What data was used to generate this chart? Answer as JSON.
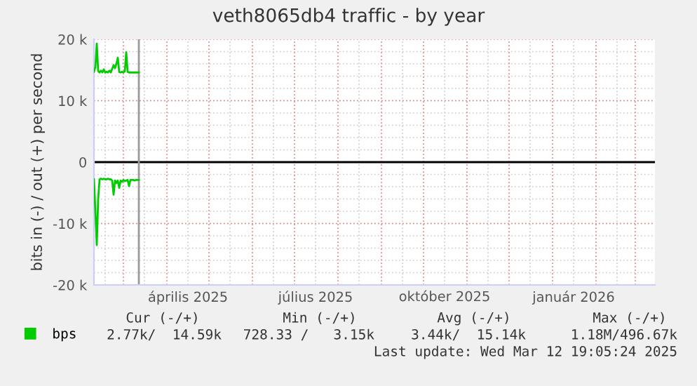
{
  "chart_data": {
    "type": "line",
    "title": "veth8065db4 traffic - by year",
    "ylabel": "bits in (-) / out (+) per second",
    "x": [
      "2025-02-08",
      "2025-02-09",
      "2025-02-10",
      "2025-02-11",
      "2025-02-12",
      "2025-02-13",
      "2025-02-14",
      "2025-02-15",
      "2025-02-16",
      "2025-02-17",
      "2025-02-18",
      "2025-02-19",
      "2025-02-20",
      "2025-02-21",
      "2025-02-22",
      "2025-02-23",
      "2025-02-24",
      "2025-02-25",
      "2025-02-26",
      "2025-02-27",
      "2025-02-28",
      "2025-03-01",
      "2025-03-02",
      "2025-03-03",
      "2025-03-04",
      "2025-03-05",
      "2025-03-06",
      "2025-03-07",
      "2025-03-08",
      "2025-03-09",
      "2025-03-10",
      "2025-03-11",
      "2025-03-12"
    ],
    "series": [
      {
        "name": "bps",
        "color": "#00cc00",
        "values": [
          14700,
          15500,
          19300,
          14800,
          14600,
          14900,
          14600,
          15100,
          14600,
          14700,
          14600,
          14900,
          14600,
          15200,
          15800,
          15300,
          16000,
          17000,
          14700,
          14600,
          14700,
          14600,
          14800,
          17900,
          14700,
          14600,
          14600,
          14600,
          14600,
          14600,
          14600,
          14600,
          14600
        ]
      },
      {
        "color": "#00cc00",
        "values": [
          -2800,
          -8000,
          -13500,
          -6000,
          -2800,
          -2700,
          -2800,
          -2700,
          -2800,
          -2800,
          -2700,
          -2800,
          -2800,
          -3000,
          -5300,
          -3000,
          -3400,
          -3000,
          -4200,
          -3000,
          -3200,
          -2900,
          -3100,
          -3000,
          -2900,
          -3900,
          -2900,
          -2900,
          -2900,
          -3000,
          -2900,
          -2900,
          -2900
        ]
      }
    ],
    "xlim": [
      "2025-02-08",
      "2026-03-15"
    ],
    "xticks": [
      {
        "value": "2025-04-16",
        "label": "április 2025"
      },
      {
        "value": "2025-07-16",
        "label": "július 2025"
      },
      {
        "value": "2025-10-16",
        "label": "október 2025"
      },
      {
        "value": "2026-01-16",
        "label": "január 2026"
      }
    ],
    "ylim": [
      -20000,
      20000
    ],
    "yticks": [
      {
        "value": -20000,
        "label": "-20 k"
      },
      {
        "value": -10000,
        "label": "-10 k"
      },
      {
        "value": 0,
        "label": "0"
      },
      {
        "value": 10000,
        "label": "10 k"
      },
      {
        "value": 20000,
        "label": "20 k"
      }
    ],
    "ref_lines": [
      {
        "axis": "y",
        "value": 0,
        "color": "#000000"
      },
      {
        "axis": "x",
        "value": "2025-03-12",
        "color": "#999999"
      }
    ],
    "grid": true,
    "legend": "bottom left",
    "annotations": [
      "Cur (-/+)",
      "Min (-/+)",
      "Avg (-/+)",
      "Max (-/+)",
      "2.77k/  14.59k",
      "728.33 /   3.15k",
      "3.44k/  15.14k",
      "1.18M/496.67k",
      "Last update: Wed Mar 12 19:05:24 2025"
    ]
  }
}
